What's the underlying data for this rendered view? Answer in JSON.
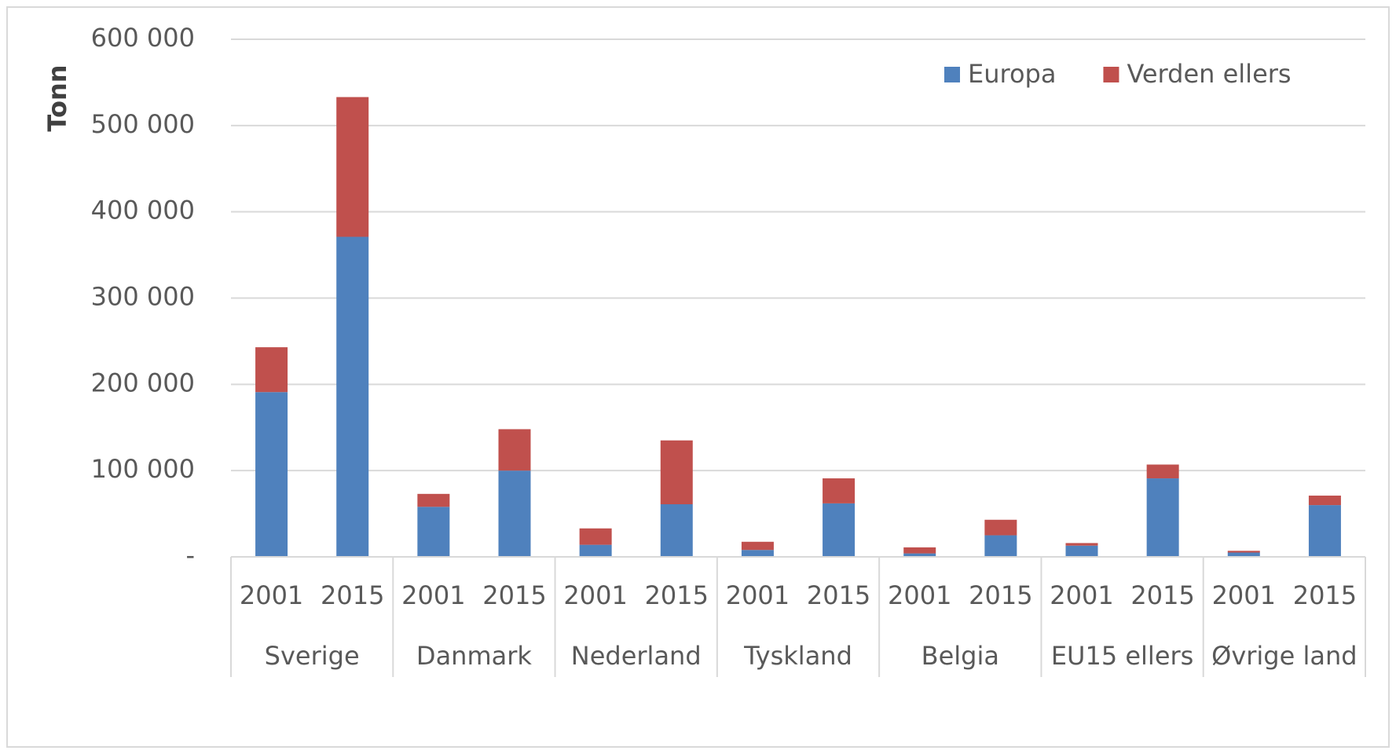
{
  "chart_data": {
    "type": "stacked_bar",
    "y_label": "Tonn",
    "categories": [
      "2001",
      "2015",
      "2001",
      "2015",
      "2001",
      "2015",
      "2001",
      "2015",
      "2001",
      "2015",
      "2001",
      "2015",
      "2001",
      "2015"
    ],
    "groups": [
      "Sverige",
      "Danmark",
      "Nederland",
      "Tyskland",
      "Belgia",
      "EU15 ellers",
      "Øvrige land"
    ],
    "series": [
      {
        "name": "Europa",
        "color": "#4f81bd",
        "values": [
          191000,
          371000,
          58000,
          100000,
          14000,
          61000,
          8000,
          62000,
          4000,
          25000,
          13000,
          91000,
          5000,
          60000
        ]
      },
      {
        "name": "Verden ellers",
        "color": "#c0504d",
        "values": [
          52000,
          162000,
          15000,
          48000,
          19000,
          74000,
          9500,
          29000,
          7000,
          18000,
          3000,
          16000,
          2000,
          11000
        ]
      }
    ],
    "ylim": [
      0,
      600000
    ],
    "yticks": [
      {
        "value": 0,
        "label": "-"
      },
      {
        "value": 100000,
        "label": "100 000"
      },
      {
        "value": 200000,
        "label": "200 000"
      },
      {
        "value": 300000,
        "label": "300 000"
      },
      {
        "value": 400000,
        "label": "400 000"
      },
      {
        "value": 500000,
        "label": "500 000"
      },
      {
        "value": 600000,
        "label": "600 000"
      }
    ],
    "grid": true,
    "legend": "top-right"
  }
}
